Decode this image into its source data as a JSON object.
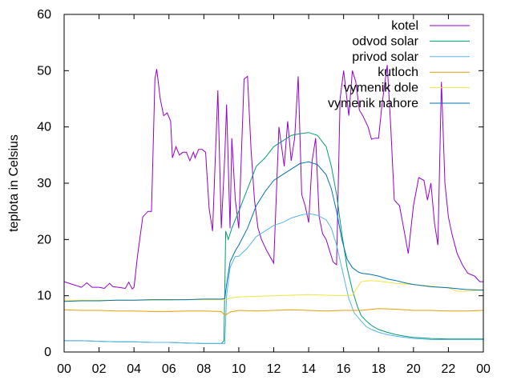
{
  "chart_data": {
    "type": "line",
    "title": "",
    "xlabel": "",
    "ylabel": "teplota in Celsius",
    "xlim": [
      0,
      24
    ],
    "ylim": [
      0,
      60
    ],
    "x_ticks": [
      "00",
      "02",
      "04",
      "06",
      "08",
      "10",
      "12",
      "14",
      "16",
      "18",
      "20",
      "22",
      "00"
    ],
    "y_ticks": [
      "0",
      "10",
      "20",
      "30",
      "40",
      "50",
      "60"
    ],
    "grid": false,
    "legend_position": "top-right",
    "series": [
      {
        "name": "kotel",
        "color": "#9400d3",
        "x": [
          0,
          0.5,
          1,
          1.3,
          1.6,
          2,
          2.3,
          2.6,
          2.8,
          3.1,
          3.5,
          3.7,
          3.9,
          4.0,
          4.2,
          4.5,
          4.8,
          5.0,
          5.2,
          5.3,
          5.5,
          5.7,
          5.9,
          6.1,
          6.2,
          6.4,
          6.6,
          6.8,
          7.0,
          7.2,
          7.4,
          7.5,
          7.7,
          7.9,
          8.1,
          8.3,
          8.5,
          8.8,
          9.0,
          9.2,
          9.3,
          9.5,
          9.6,
          9.8,
          10.0,
          10.3,
          10.5,
          10.7,
          10.9,
          11.1,
          11.3,
          11.6,
          12.0,
          12.3,
          12.6,
          12.8,
          13.0,
          13.2,
          13.4,
          13.6,
          13.8,
          14.0,
          14.2,
          14.4,
          14.6,
          14.8,
          15.0,
          15.2,
          15.4,
          15.6,
          15.8,
          16.0,
          16.3,
          16.5,
          16.7,
          16.9,
          17.1,
          17.4,
          17.6,
          17.8,
          18.0,
          18.2,
          18.5,
          18.7,
          18.9,
          19.2,
          19.5,
          19.7,
          20.0,
          20.3,
          20.6,
          20.8,
          21.0,
          21.2,
          21.4,
          21.6,
          21.8,
          22.0,
          22.2,
          22.5,
          22.8,
          23.1,
          23.5,
          23.8,
          24.0
        ],
        "y": [
          12.5,
          12,
          11.5,
          12.3,
          11.5,
          11.5,
          11.3,
          12.2,
          11.6,
          11.5,
          11.3,
          12.4,
          11.2,
          11.5,
          17,
          24,
          25,
          25,
          48.5,
          50.3,
          45,
          42,
          42.5,
          41,
          34.5,
          36.5,
          35,
          35.5,
          35.5,
          34,
          35.5,
          34.5,
          36,
          36,
          35.5,
          25.5,
          21.5,
          46.5,
          22,
          35,
          44,
          22,
          38,
          27,
          22,
          48.5,
          49,
          36,
          27,
          22,
          20,
          18,
          15.8,
          40,
          33,
          41,
          34,
          38,
          49,
          28,
          26,
          23,
          34,
          38,
          24,
          21,
          20,
          18,
          16,
          15.5,
          45,
          50,
          42,
          50,
          48,
          43,
          42,
          40,
          37.8,
          38,
          38,
          44,
          51,
          40,
          27,
          26,
          21,
          17.5,
          26,
          31,
          30.5,
          27,
          30,
          23,
          19,
          48,
          30,
          24,
          21,
          17.5,
          15.5,
          14,
          13.5,
          12.5,
          12.5
        ]
      },
      {
        "name": "odvod solar",
        "color": "#009e73",
        "x": [
          0,
          1,
          2,
          3,
          4,
          5,
          6,
          7,
          8,
          9.0,
          9.15,
          9.25,
          9.4,
          9.6,
          10.0,
          10.5,
          11.0,
          11.5,
          12.0,
          12.5,
          13.0,
          13.5,
          14.0,
          14.5,
          15.0,
          15.3,
          15.6,
          15.9,
          16.2,
          16.5,
          16.8,
          17.0,
          17.3,
          17.6,
          18.0,
          18.5,
          19.0,
          19.5,
          20.0,
          20.5,
          21.0,
          22.0,
          23.0,
          24.0
        ],
        "y": [
          2,
          2,
          1.9,
          1.8,
          1.8,
          1.7,
          1.7,
          1.6,
          1.5,
          1.5,
          2,
          21.5,
          20,
          22,
          25,
          29,
          33,
          34.5,
          36.5,
          37.5,
          38.5,
          38.8,
          39,
          38.5,
          36.5,
          33,
          28,
          21,
          15,
          11,
          8,
          6.5,
          5.5,
          4.7,
          4,
          3.5,
          3.1,
          2.8,
          2.6,
          2.5,
          2.4,
          2.3,
          2.3,
          2.3
        ]
      },
      {
        "name": "privod solar",
        "color": "#56b4e9",
        "x": [
          0,
          1,
          2,
          3,
          4,
          5,
          6,
          7,
          8,
          9.0,
          9.2,
          9.3,
          9.5,
          9.8,
          10.0,
          10.5,
          11.0,
          11.5,
          12.0,
          12.5,
          13.0,
          13.5,
          14.0,
          14.5,
          15.0,
          15.3,
          15.6,
          16.0,
          16.3,
          16.6,
          17.0,
          17.3,
          17.6,
          18.0,
          18.5,
          19.0,
          19.5,
          20.0,
          20.5,
          21.0,
          22.0,
          23.0,
          24.0
        ],
        "y": [
          2,
          2,
          1.9,
          1.8,
          1.8,
          1.7,
          1.7,
          1.6,
          1.5,
          1.5,
          1.5,
          10,
          15,
          17,
          17,
          18.5,
          20.5,
          21.5,
          22.5,
          23,
          23.8,
          24.3,
          24.6,
          24.3,
          23.5,
          22,
          19,
          13.5,
          9.5,
          7,
          5.5,
          4.5,
          4,
          3.5,
          3.1,
          2.8,
          2.6,
          2.4,
          2.3,
          2.2,
          2.2,
          2.2,
          2.2
        ]
      },
      {
        "name": "kutloch",
        "color": "#e69f00",
        "x": [
          0,
          1,
          2,
          3,
          4,
          5,
          6,
          7,
          8,
          9.0,
          9.2,
          9.5,
          10,
          11,
          12,
          13,
          14,
          15,
          16,
          17,
          18,
          19,
          20,
          21,
          22,
          23,
          24
        ],
        "y": [
          7.5,
          7.4,
          7.4,
          7.3,
          7.3,
          7.2,
          7.2,
          7.3,
          7.3,
          7.2,
          6.5,
          7.1,
          7.4,
          7.3,
          7.4,
          7.5,
          7.4,
          7.3,
          7.4,
          7.4,
          7.7,
          7.6,
          7.4,
          7.4,
          7.3,
          7.3,
          7.4
        ]
      },
      {
        "name": "vymenik dole",
        "color": "#f0e442",
        "x": [
          0,
          1,
          2,
          3,
          4,
          5,
          6,
          7,
          8,
          9.0,
          9.2,
          9.5,
          10,
          11,
          12,
          13,
          14,
          15,
          16,
          16.5,
          16.8,
          17.0,
          17.5,
          18,
          19,
          20,
          21,
          22,
          22.5,
          23,
          24
        ],
        "y": [
          9.2,
          9.2,
          9.2,
          9.2,
          9.2,
          9.2,
          9.2,
          9.3,
          9.3,
          9.3,
          9.3,
          9.6,
          9.8,
          9.9,
          10,
          10.1,
          10.2,
          10.1,
          10,
          10.1,
          11.5,
          12.5,
          12.7,
          12.6,
          12.2,
          12,
          11.7,
          11.4,
          10.8,
          10.8,
          11
        ]
      },
      {
        "name": "vymenik nahore",
        "color": "#0072b2",
        "x": [
          0,
          1,
          2,
          3,
          4,
          5,
          6,
          7,
          8,
          9.0,
          9.2,
          9.3,
          9.5,
          9.8,
          10.0,
          10.5,
          11.0,
          11.5,
          12.0,
          12.5,
          13.0,
          13.5,
          14.0,
          14.5,
          15.0,
          15.3,
          15.6,
          15.9,
          16.2,
          16.5,
          16.8,
          17.0,
          17.5,
          18.0,
          18.5,
          19.0,
          19.5,
          20.0,
          21.0,
          22.0,
          23.0,
          24.0
        ],
        "y": [
          9,
          9.1,
          9.1,
          9.2,
          9.2,
          9.3,
          9.3,
          9.3,
          9.4,
          9.4,
          9.5,
          12,
          16,
          18,
          19,
          22,
          26,
          28.5,
          30.5,
          31.5,
          32.5,
          33.5,
          33.8,
          33.3,
          31.5,
          29,
          25,
          20,
          16.5,
          15,
          14.3,
          14,
          13.8,
          13.5,
          13,
          12.7,
          12.3,
          12,
          11.6,
          11.4,
          11.1,
          11
        ]
      }
    ]
  }
}
